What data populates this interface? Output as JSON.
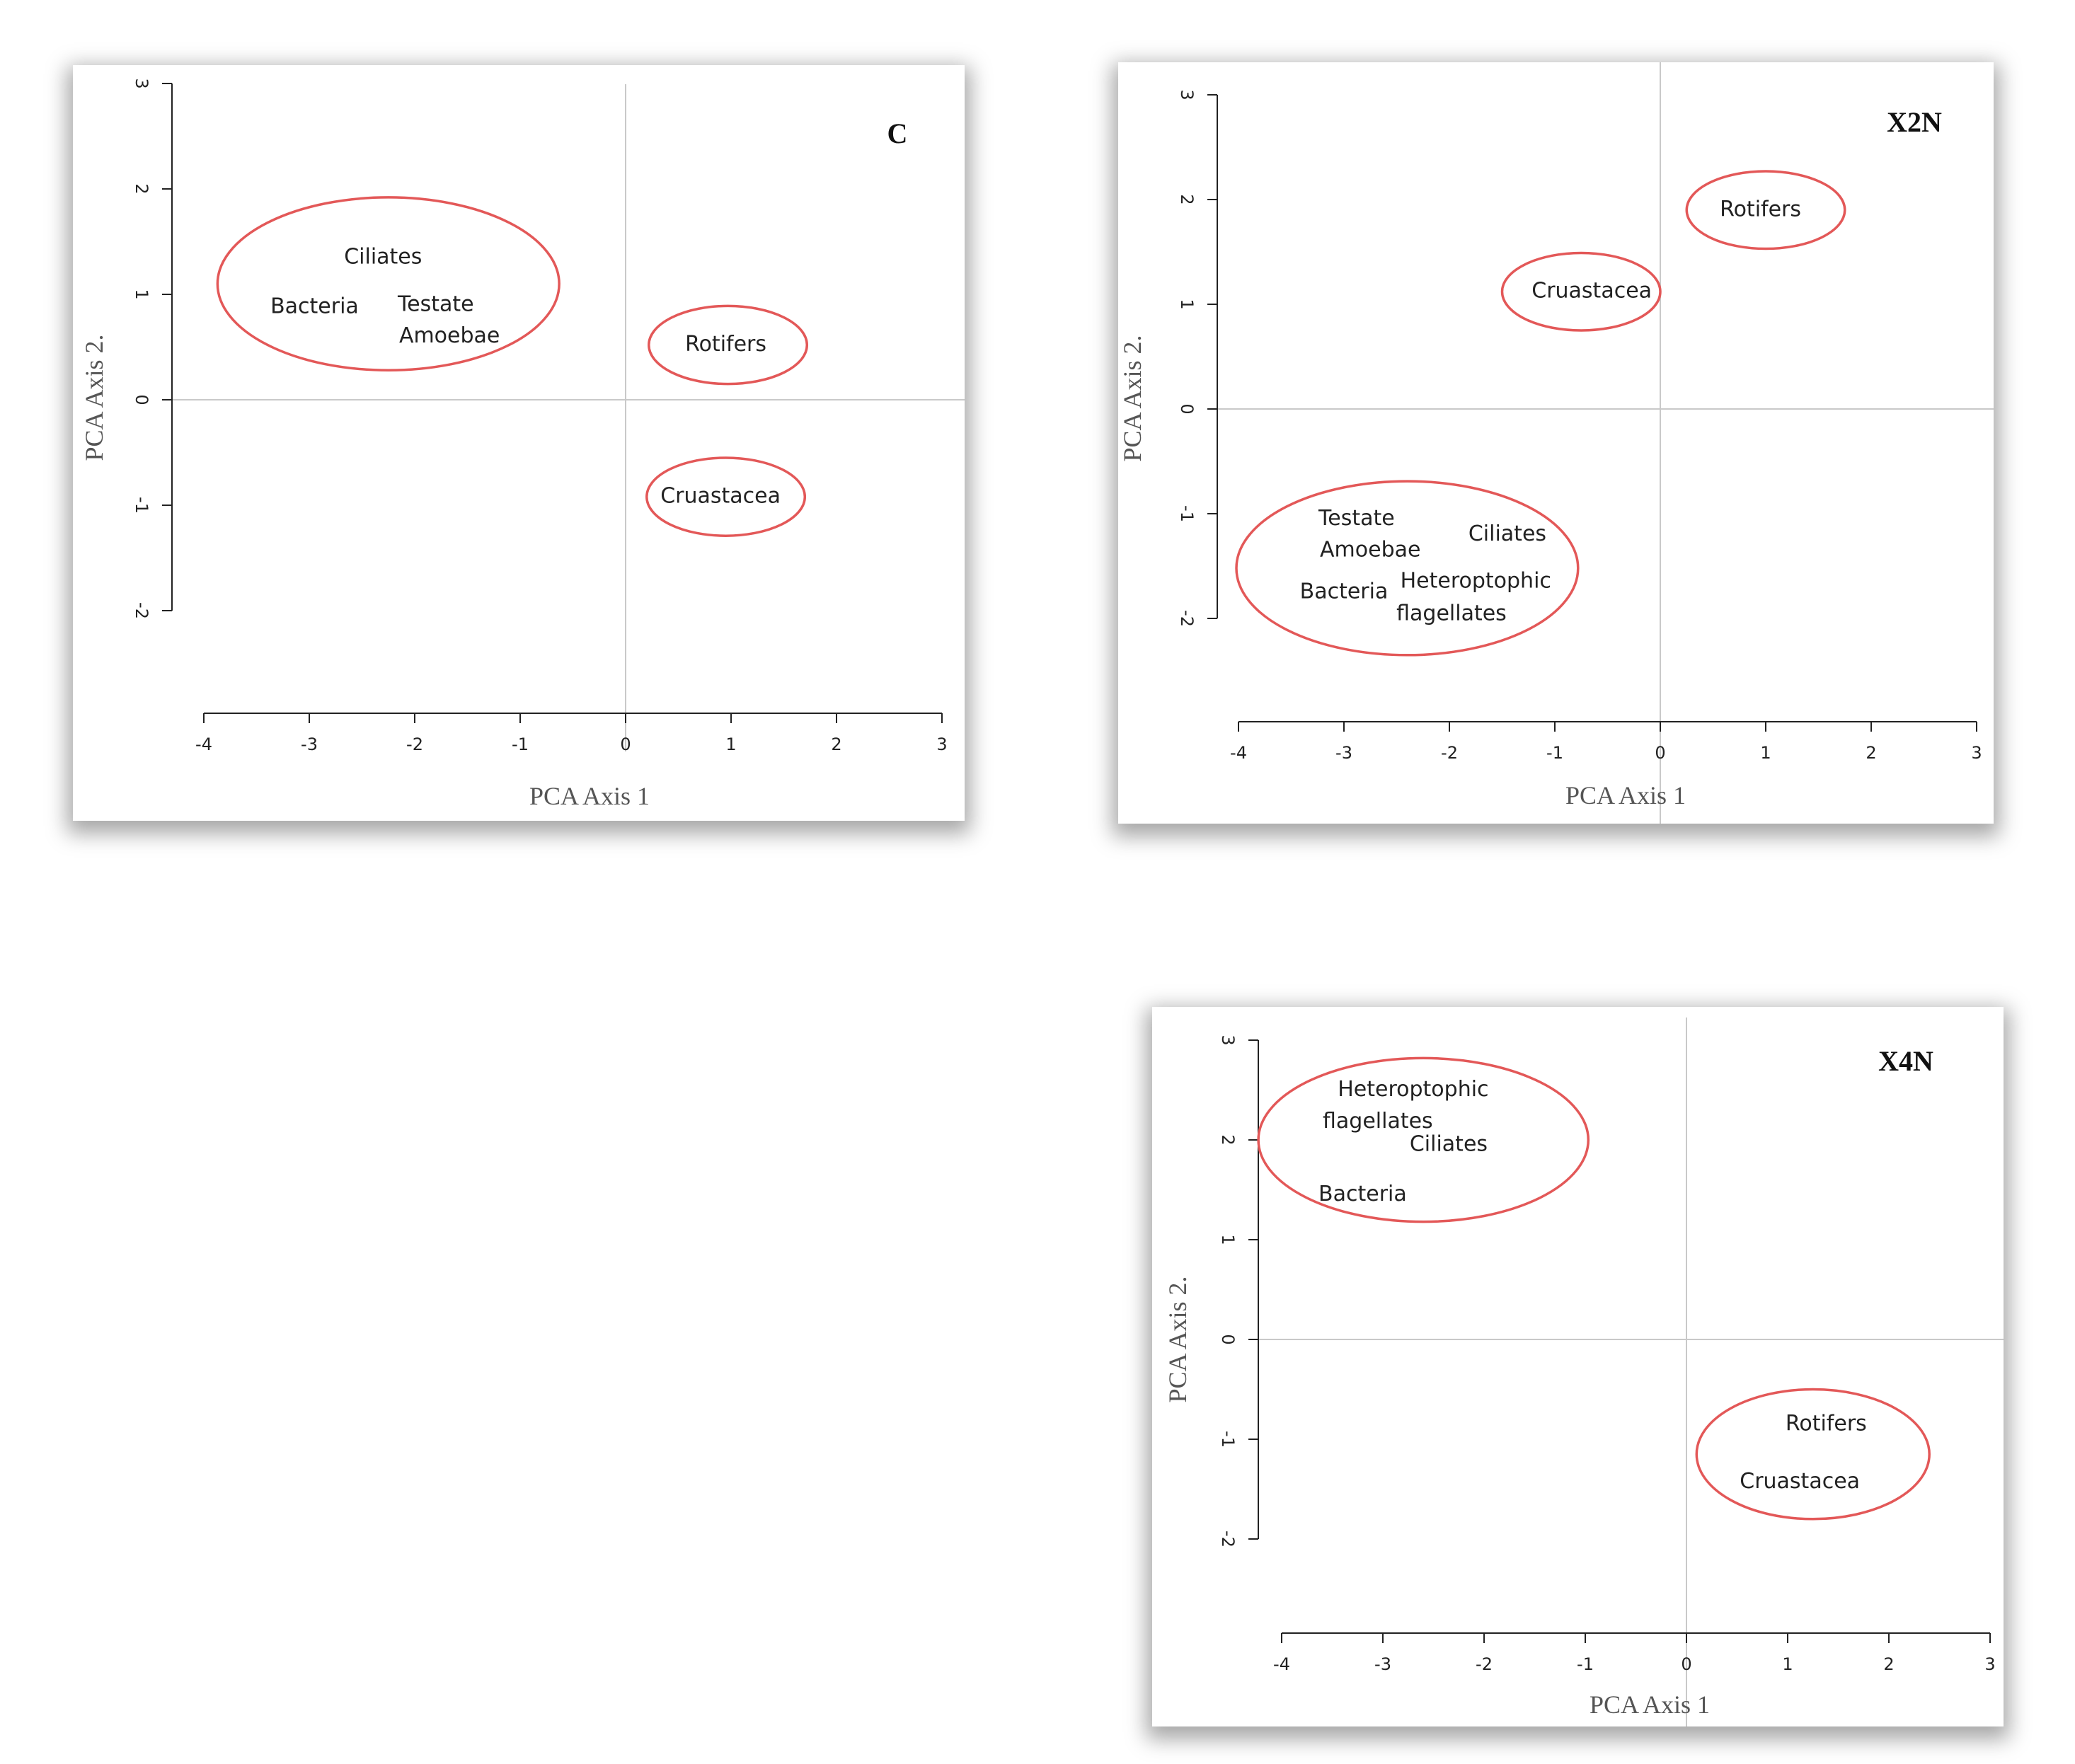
{
  "chart_data": [
    {
      "type": "scatter",
      "panel_label": "C",
      "xlabel": "PCA Axis 1",
      "ylabel": "PCA Axis 2",
      "xlim": [
        -4,
        3
      ],
      "ylim": [
        -2,
        3
      ],
      "x_ticks": [
        "-4",
        "-3",
        "-2",
        "-1",
        "0",
        "1",
        "2",
        "3"
      ],
      "y_ticks": [
        "3",
        "2",
        "1",
        "0",
        "-1",
        "-2"
      ],
      "points": [
        {
          "label": "Ciliates",
          "x": -2.3,
          "y": 1.35
        },
        {
          "label": "Bacteria",
          "x": -2.95,
          "y": 0.88
        },
        {
          "label": "Testate",
          "x": -1.8,
          "y": 0.9
        },
        {
          "label": "Amoebae",
          "x": -1.67,
          "y": 0.6
        },
        {
          "label": "Rotifers",
          "x": 0.95,
          "y": 0.52
        },
        {
          "label": "Cruastacea",
          "x": 0.9,
          "y": -0.92
        }
      ],
      "clusters": [
        {
          "cx": -2.25,
          "cy": 1.1,
          "rx": 1.62,
          "ry": 0.82
        },
        {
          "cx": 0.97,
          "cy": 0.52,
          "rx": 0.75,
          "ry": 0.37
        },
        {
          "cx": 0.95,
          "cy": -0.92,
          "rx": 0.75,
          "ry": 0.37
        }
      ]
    },
    {
      "type": "scatter",
      "panel_label": "X2N",
      "xlabel": "PCA Axis 1",
      "ylabel": "PCA Axis 2",
      "xlim": [
        -4,
        3
      ],
      "ylim": [
        -2,
        3
      ],
      "x_ticks": [
        "-4",
        "-3",
        "-2",
        "-1",
        "0",
        "1",
        "2",
        "3"
      ],
      "y_ticks": [
        "3",
        "2",
        "1",
        "0",
        "-1",
        "-2"
      ],
      "points": [
        {
          "label": "Rotifers",
          "x": 0.95,
          "y": 1.9
        },
        {
          "label": "Cruastacea",
          "x": -0.65,
          "y": 1.12
        },
        {
          "label": "Testate",
          "x": -2.88,
          "y": -1.05
        },
        {
          "label": "Amoebae",
          "x": -2.75,
          "y": -1.35
        },
        {
          "label": "Ciliates",
          "x": -1.45,
          "y": -1.2
        },
        {
          "label": "Heteroptophic",
          "x": -1.75,
          "y": -1.65
        },
        {
          "label": "flagellates",
          "x": -1.98,
          "y": -1.96
        },
        {
          "label": "Bacteria",
          "x": -3.0,
          "y": -1.75
        }
      ],
      "clusters": [
        {
          "cx": 1.0,
          "cy": 1.9,
          "rx": 0.75,
          "ry": 0.37
        },
        {
          "cx": -0.75,
          "cy": 1.12,
          "rx": 0.75,
          "ry": 0.37
        },
        {
          "cx": -2.4,
          "cy": -1.52,
          "rx": 1.62,
          "ry": 0.83
        }
      ]
    },
    {
      "type": "scatter",
      "panel_label": "X4N",
      "xlabel": "PCA Axis 1",
      "ylabel": "PCA Axis 2",
      "xlim": [
        -4,
        3
      ],
      "ylim": [
        -2,
        3
      ],
      "x_ticks": [
        "-4",
        "-3",
        "-2",
        "-1",
        "0",
        "1",
        "2",
        "3"
      ],
      "y_ticks": [
        "3",
        "2",
        "1",
        "0",
        "-1",
        "-2"
      ],
      "points": [
        {
          "label": "Heteroptophic",
          "x": -2.7,
          "y": 2.5
        },
        {
          "label": "flagellates",
          "x": -3.05,
          "y": 2.18
        },
        {
          "label": "Ciliates",
          "x": -2.35,
          "y": 1.95
        },
        {
          "label": "Bacteria",
          "x": -3.2,
          "y": 1.45
        },
        {
          "label": "Rotifers",
          "x": 1.38,
          "y": -0.85
        },
        {
          "label": "Cruastacea",
          "x": 1.12,
          "y": -1.43
        }
      ],
      "clusters": [
        {
          "cx": -2.6,
          "cy": 2.0,
          "rx": 1.63,
          "ry": 0.82
        },
        {
          "cx": 1.25,
          "cy": -1.15,
          "rx": 1.15,
          "ry": 0.65
        }
      ]
    }
  ]
}
